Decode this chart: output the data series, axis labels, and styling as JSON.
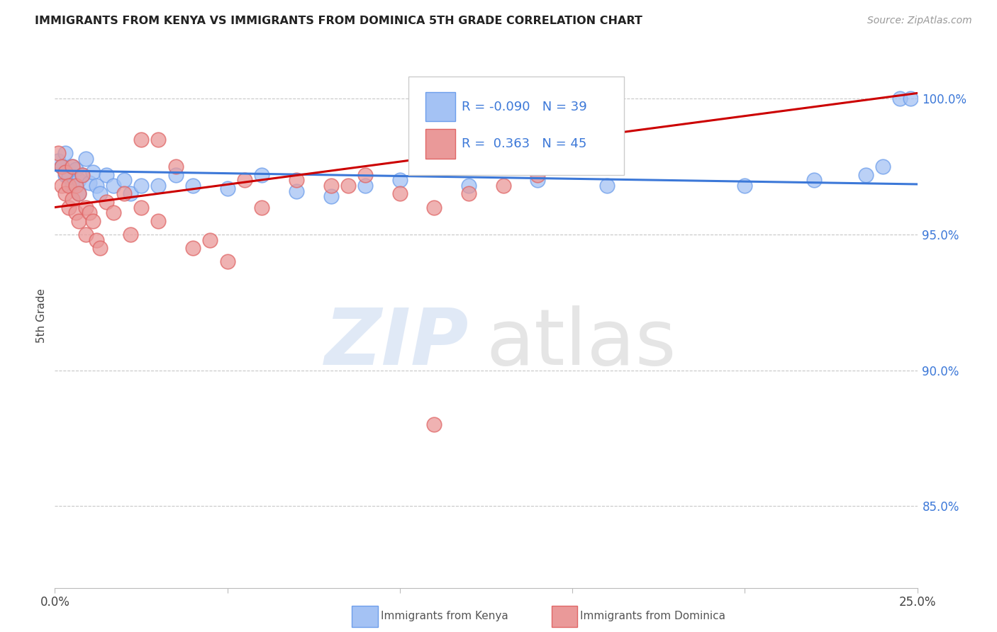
{
  "title": "IMMIGRANTS FROM KENYA VS IMMIGRANTS FROM DOMINICA 5TH GRADE CORRELATION CHART",
  "source": "Source: ZipAtlas.com",
  "ylabel": "5th Grade",
  "xlim": [
    0.0,
    0.25
  ],
  "ylim": [
    0.82,
    1.02
  ],
  "xtick_positions": [
    0.0,
    0.05,
    0.1,
    0.15,
    0.2,
    0.25
  ],
  "xtick_labels_show": [
    "0.0%",
    "",
    "",
    "",
    "",
    "25.0%"
  ],
  "ytick_values": [
    0.85,
    0.9,
    0.95,
    1.0
  ],
  "ytick_labels": [
    "85.0%",
    "90.0%",
    "95.0%",
    "100.0%"
  ],
  "kenya_color": "#a4c2f4",
  "kenya_edge_color": "#6d9eeb",
  "dominica_color": "#ea9999",
  "dominica_edge_color": "#e06666",
  "kenya_line_color": "#3c78d8",
  "dominica_line_color": "#cc0000",
  "kenya_R": -0.09,
  "kenya_N": 39,
  "dominica_R": 0.363,
  "dominica_N": 45,
  "grid_color": "#c8c8c8",
  "background_color": "#ffffff",
  "kenya_x": [
    0.001,
    0.002,
    0.003,
    0.003,
    0.004,
    0.005,
    0.005,
    0.006,
    0.007,
    0.007,
    0.008,
    0.009,
    0.01,
    0.011,
    0.012,
    0.013,
    0.015,
    0.017,
    0.02,
    0.022,
    0.025,
    0.03,
    0.035,
    0.04,
    0.05,
    0.06,
    0.07,
    0.08,
    0.09,
    0.1,
    0.12,
    0.14,
    0.16,
    0.2,
    0.22,
    0.235,
    0.24,
    0.245,
    0.248
  ],
  "kenya_y": [
    0.977,
    0.975,
    0.98,
    0.972,
    0.971,
    0.975,
    0.968,
    0.974,
    0.97,
    0.965,
    0.972,
    0.978,
    0.969,
    0.973,
    0.968,
    0.965,
    0.972,
    0.968,
    0.97,
    0.965,
    0.968,
    0.968,
    0.972,
    0.968,
    0.967,
    0.972,
    0.966,
    0.964,
    0.968,
    0.97,
    0.968,
    0.97,
    0.968,
    0.968,
    0.97,
    0.972,
    0.975,
    1.0,
    1.0
  ],
  "dominica_x": [
    0.001,
    0.002,
    0.002,
    0.003,
    0.003,
    0.004,
    0.004,
    0.005,
    0.005,
    0.006,
    0.006,
    0.007,
    0.007,
    0.008,
    0.009,
    0.009,
    0.01,
    0.011,
    0.012,
    0.013,
    0.015,
    0.017,
    0.02,
    0.022,
    0.025,
    0.03,
    0.035,
    0.04,
    0.045,
    0.05,
    0.06,
    0.07,
    0.08,
    0.09,
    0.1,
    0.11,
    0.12,
    0.13,
    0.14,
    0.15,
    0.025,
    0.03,
    0.055,
    0.085,
    0.11
  ],
  "dominica_y": [
    0.98,
    0.975,
    0.968,
    0.973,
    0.965,
    0.968,
    0.96,
    0.963,
    0.975,
    0.958,
    0.968,
    0.955,
    0.965,
    0.972,
    0.96,
    0.95,
    0.958,
    0.955,
    0.948,
    0.945,
    0.962,
    0.958,
    0.965,
    0.95,
    0.96,
    0.955,
    0.975,
    0.945,
    0.948,
    0.94,
    0.96,
    0.97,
    0.968,
    0.972,
    0.965,
    0.96,
    0.965,
    0.968,
    0.972,
    0.975,
    0.985,
    0.985,
    0.97,
    0.968,
    0.88
  ],
  "kenya_line_x0": 0.0,
  "kenya_line_y0": 0.9735,
  "kenya_line_x1": 0.25,
  "kenya_line_y1": 0.9685,
  "dominica_line_x0": 0.0,
  "dominica_line_y0": 0.96,
  "dominica_line_x1": 0.25,
  "dominica_line_y1": 1.002
}
